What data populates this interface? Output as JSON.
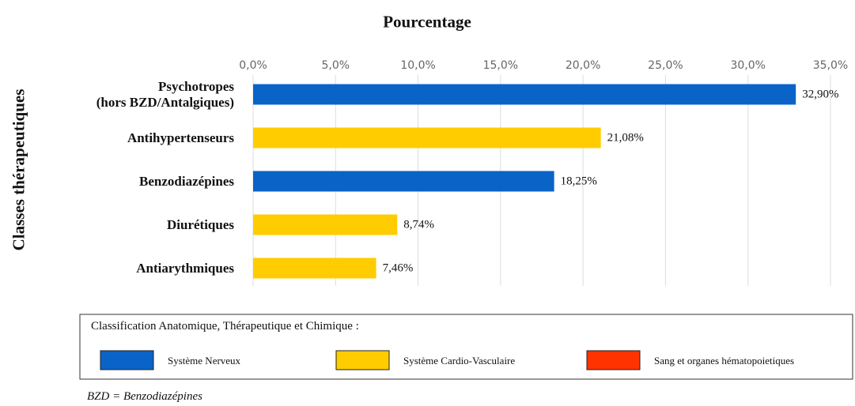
{
  "chart_data": {
    "type": "bar",
    "orientation": "horizontal",
    "title": "Pourcentage",
    "y_label": "Classes thérapeutiques",
    "categories": [
      "Psychotropes\n(hors BZD/Antalgiques)",
      "Antihypertenseurs",
      "Benzodiazépines",
      "Diurétiques",
      "Antiarythmiques"
    ],
    "values": [
      32.9,
      21.08,
      18.25,
      8.74,
      7.46
    ],
    "value_labels": [
      "32,90%",
      "21,08%",
      "18,25%",
      "8,74%",
      "7,46%"
    ],
    "colors": [
      "#0a64c8",
      "#ffcc00",
      "#0a64c8",
      "#ffcc00",
      "#ffcc00"
    ],
    "xlim": [
      0,
      35
    ],
    "xticks": [
      {
        "value": 0,
        "label": "0,0%"
      },
      {
        "value": 5,
        "label": "5,0%"
      },
      {
        "value": 10,
        "label": "10,0%"
      },
      {
        "value": 15,
        "label": "15,0%"
      },
      {
        "value": 20,
        "label": "20,0%"
      },
      {
        "value": 25,
        "label": "25,0%"
      },
      {
        "value": 30,
        "label": "30,0%"
      },
      {
        "value": 35,
        "label": "35,0%"
      }
    ],
    "grid": true,
    "legend": {
      "title": "Classification Anatomique, Thérapeutique  et Chimique :",
      "items": [
        {
          "name": "Système Nerveux",
          "color": "#0a64c8"
        },
        {
          "name": "Système Cardio-Vasculaire",
          "color": "#ffcc00"
        },
        {
          "name": "Sang et organes  hématopoietiques",
          "color": "#ff3300"
        }
      ]
    },
    "footnote": "BZD = Benzodiazépines"
  }
}
